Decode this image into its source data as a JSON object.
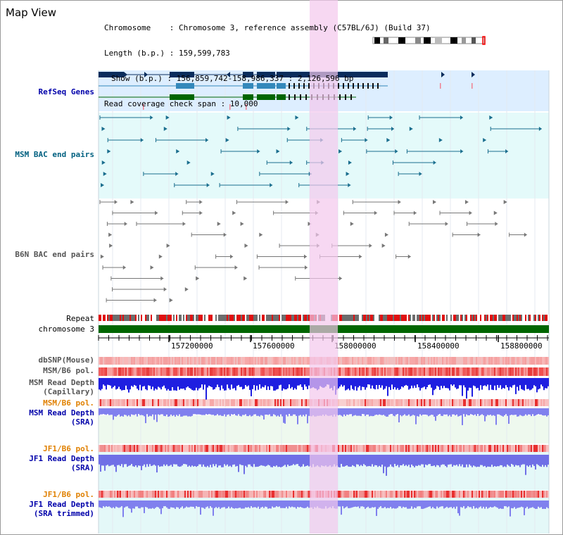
{
  "title": "Map View",
  "header": {
    "chromosome": "Chromosome    : Chromosome 3, reference assembly (C57BL/6J) (Build 37)",
    "length": "Length (b.p.) : 159,599,783",
    "show": "Show (b.p.) : 156,859,742-158,986,337 : 2,126,596 bp",
    "coverage": "Read coverage check span : 10,000"
  },
  "tracks": {
    "refseq": "RefSeq Genes",
    "msm_bac": "MSM BAC end pairs",
    "b6n_bac": "B6N BAC end pairs",
    "repeat": "Repeat",
    "chromosome": "chromosome 3",
    "dbsnp": "dbSNP(Mouse)",
    "msm_b6_pol": "MSM/B6 pol.",
    "msm_depth_cap_1": "MSM Read Depth",
    "msm_depth_cap_2": "(Capillary)",
    "msm_b6_pol_sra": "MSM/B6 pol.",
    "msm_depth_sra_1": "MSM Read Depth",
    "msm_depth_sra_2": "(SRA)",
    "jf1_b6_pol": "JF1/B6 pol.",
    "jf1_depth_sra_1": "JF1 Read Depth",
    "jf1_depth_sra_2": "(SRA)",
    "jf1_b6_pol_trim": "JF1/B6 pol.",
    "jf1_depth_trim_1": "JF1 Read Depth",
    "jf1_depth_trim_2": "(SRA trimmed)"
  },
  "axis_ticks": [
    "157200000",
    "157600000",
    "158000000",
    "158400000",
    "158800000"
  ],
  "colors": {
    "refseq_label": "#0000aa",
    "msm_bac_label": "#006080",
    "b6n_label": "#555555",
    "pol_label_orange": "#e08000",
    "depth_label_blue": "#0000aa",
    "highlight": "#f4c8ec",
    "refseq_bg": "#ddeeff",
    "bac_bg": "#e4fafa",
    "gene_dark": "#0a2d5c",
    "gene_mid": "#3388bb",
    "gene_green": "#006600",
    "chrom_green": "#006600",
    "msm_line": "#1a6e8e",
    "b6n_line": "#777777",
    "depth_blue": "#1f1fe0",
    "sra_blue": "#8080ee"
  }
}
